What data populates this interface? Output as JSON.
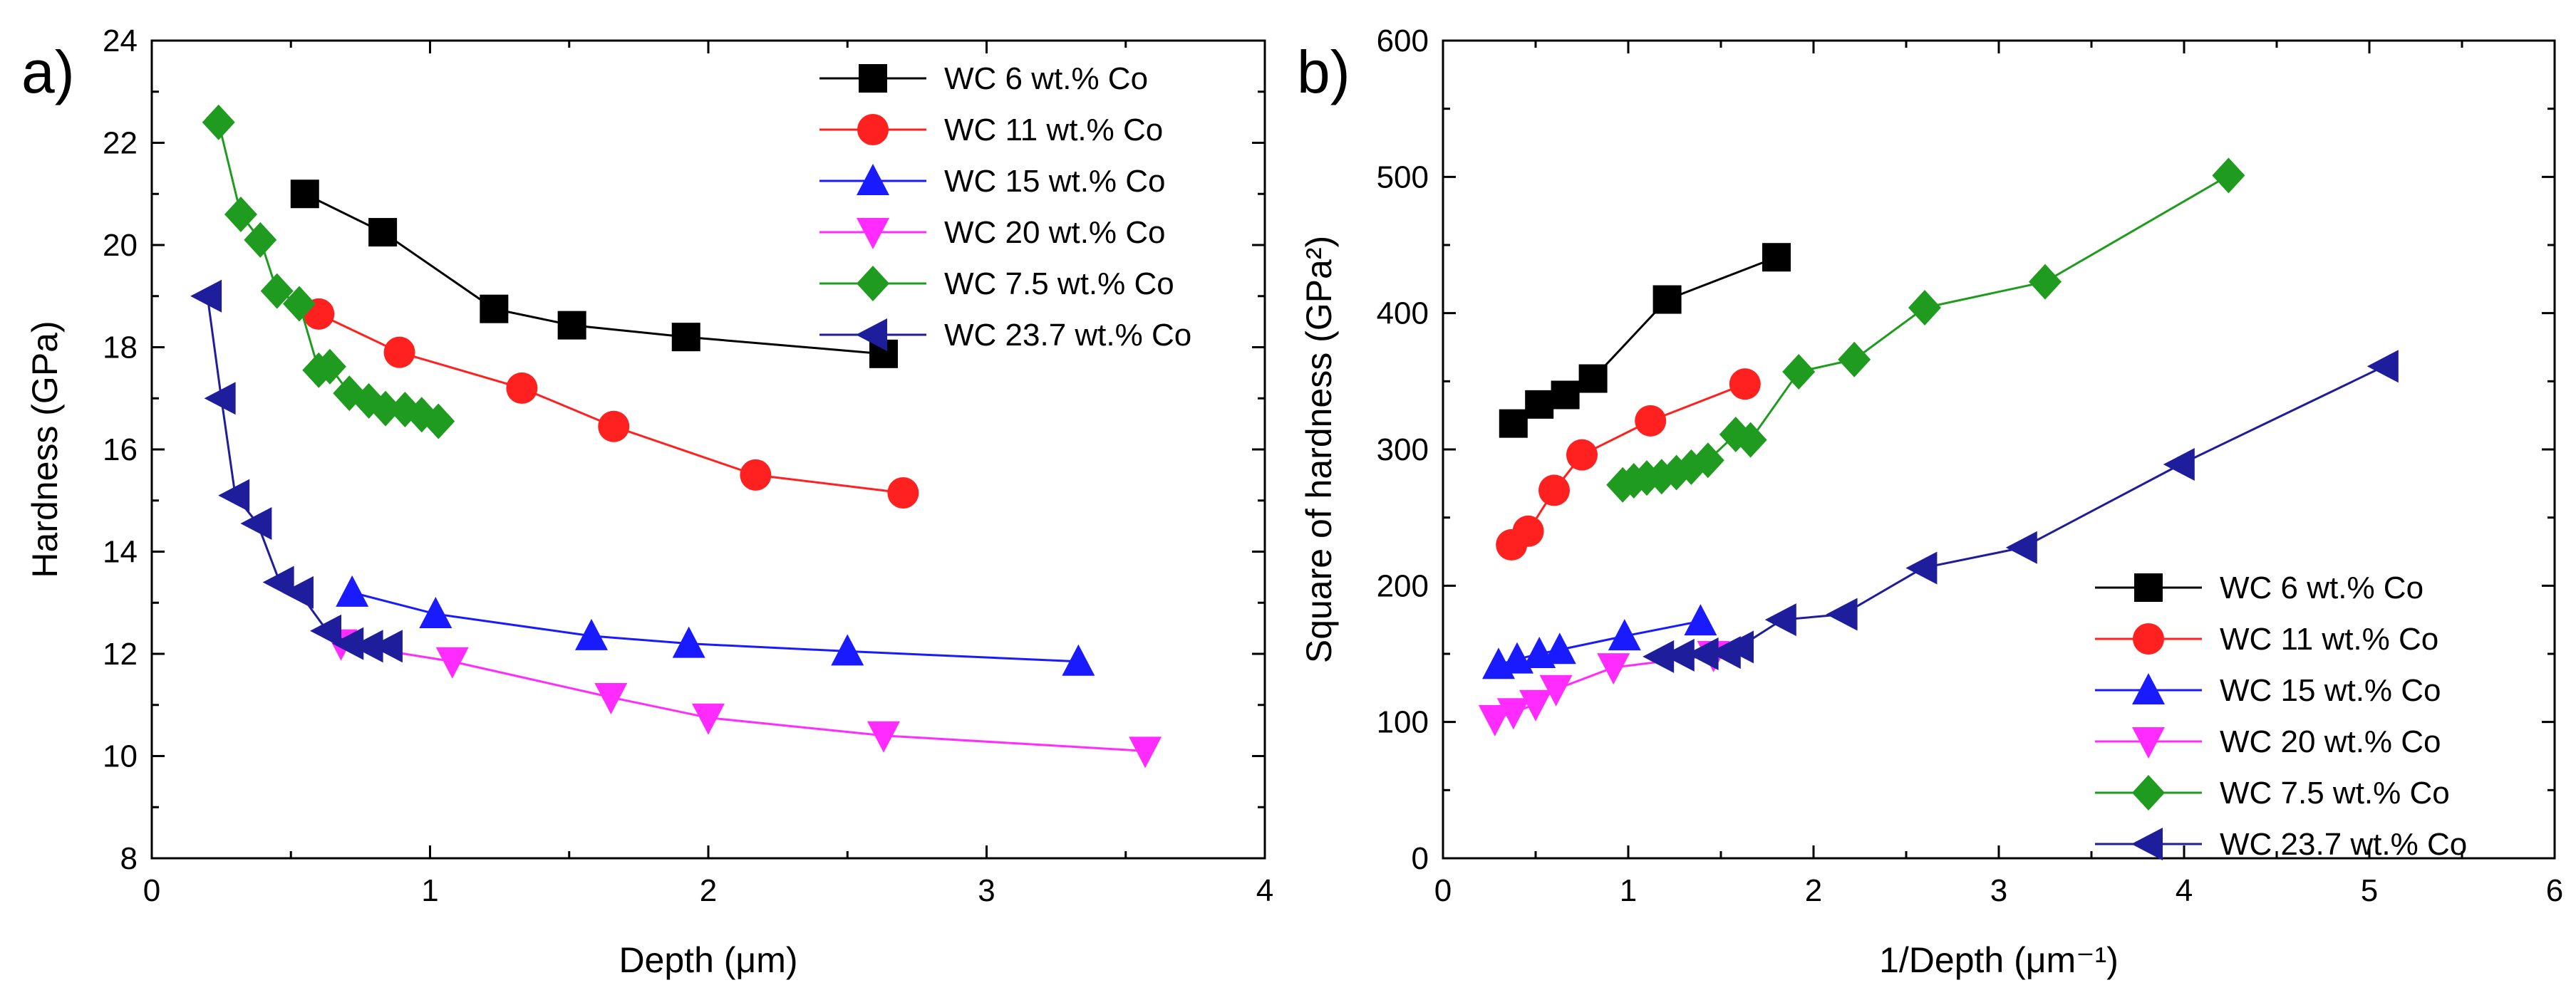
{
  "colors": {
    "black": "#000000",
    "red": "#ff2020",
    "blue": "#1a1aff",
    "magenta": "#ff2bff",
    "green": "#1f9c1f",
    "navy": "#1e1e9c"
  },
  "chart_data": [
    {
      "type": "line",
      "panel_label": "a)",
      "title": "",
      "xlabel": "Depth (μm)",
      "ylabel": "Hardness (GPa)",
      "xlim": [
        0,
        4
      ],
      "ylim": [
        8,
        24
      ],
      "xticks": [
        0,
        1,
        2,
        3,
        4
      ],
      "yticks": [
        8,
        10,
        12,
        14,
        16,
        18,
        20,
        22,
        24
      ],
      "xtick_labels": [
        "0",
        "1",
        "2",
        "3",
        "4"
      ],
      "ytick_labels": [
        "8",
        "10",
        "12",
        "14",
        "16",
        "18",
        "20",
        "22",
        "24"
      ],
      "legend_position": "top-right",
      "series": [
        {
          "name": "WC 6 wt.% Co",
          "marker": "square",
          "color": "#000000",
          "x": [
            0.55,
            0.83,
            1.23,
            1.51,
            1.92,
            2.63
          ],
          "y": [
            21.0,
            20.25,
            18.75,
            18.43,
            18.2,
            17.87
          ]
        },
        {
          "name": "WC 11 wt.% Co",
          "marker": "circle",
          "color": "#ff2020",
          "x": [
            0.6,
            0.89,
            1.33,
            1.66,
            2.17,
            2.7
          ],
          "y": [
            18.65,
            17.9,
            17.2,
            16.45,
            15.5,
            15.15
          ]
        },
        {
          "name": "WC 15 wt.% Co",
          "marker": "triangle-up",
          "color": "#1a1aff",
          "x": [
            0.72,
            1.02,
            1.58,
            1.93,
            2.5,
            3.33
          ],
          "y": [
            13.2,
            12.78,
            12.35,
            12.2,
            12.05,
            11.85
          ]
        },
        {
          "name": "WC 20 wt.% Co",
          "marker": "triangle-down",
          "color": "#ff2bff",
          "x": [
            0.68,
            1.08,
            1.65,
            2.0,
            2.63,
            3.57
          ],
          "y": [
            12.2,
            11.85,
            11.15,
            10.75,
            10.4,
            10.1
          ]
        },
        {
          "name": "WC 7.5 wt.% Co",
          "marker": "diamond",
          "color": "#1f9c1f",
          "x": [
            0.24,
            0.32,
            0.39,
            0.45,
            0.53,
            0.6,
            0.64,
            0.71,
            0.78,
            0.84,
            0.91,
            0.97,
            1.03
          ],
          "y": [
            22.4,
            20.6,
            20.1,
            19.1,
            18.85,
            17.55,
            17.62,
            17.1,
            16.95,
            16.8,
            16.78,
            16.68,
            16.55
          ]
        },
        {
          "name": "WC 23.7 wt.% Co",
          "marker": "triangle-left",
          "color": "#1e1e9c",
          "x": [
            0.2,
            0.25,
            0.3,
            0.38,
            0.46,
            0.53,
            0.63,
            0.71,
            0.78,
            0.85
          ],
          "y": [
            19.0,
            17.0,
            15.1,
            14.55,
            13.4,
            13.2,
            12.45,
            12.2,
            12.15,
            12.15
          ]
        }
      ]
    },
    {
      "type": "line",
      "panel_label": "b)",
      "title": "",
      "xlabel": "1/Depth (μm⁻¹)",
      "ylabel": "Square of hardness (GPa²)",
      "xlim": [
        0,
        6
      ],
      "ylim": [
        0,
        600
      ],
      "xticks": [
        0,
        1,
        2,
        3,
        4,
        5,
        6
      ],
      "yticks": [
        0,
        100,
        200,
        300,
        400,
        500,
        600
      ],
      "xtick_labels": [
        "0",
        "1",
        "2",
        "3",
        "4",
        "5",
        "6"
      ],
      "ytick_labels": [
        "0",
        "100",
        "200",
        "300",
        "400",
        "500",
        "600"
      ],
      "legend_position": "bottom-right",
      "series": [
        {
          "name": "WC 6 wt.% Co",
          "marker": "square",
          "color": "#000000",
          "x": [
            0.38,
            0.52,
            0.66,
            0.81,
            1.21,
            1.8
          ],
          "y": [
            319,
            333,
            340,
            352,
            410,
            441
          ]
        },
        {
          "name": "WC 11 wt.% Co",
          "marker": "circle",
          "color": "#ff2020",
          "x": [
            0.37,
            0.46,
            0.6,
            0.75,
            1.12,
            1.63
          ],
          "y": [
            230,
            240,
            270,
            296,
            321,
            348
          ]
        },
        {
          "name": "WC 15 wt.% Co",
          "marker": "triangle-up",
          "color": "#1a1aff",
          "x": [
            0.3,
            0.4,
            0.52,
            0.63,
            0.98,
            1.39
          ],
          "y": [
            142,
            146,
            150,
            153,
            163,
            174
          ]
        },
        {
          "name": "WC 20 wt.% Co",
          "marker": "triangle-down",
          "color": "#ff2bff",
          "x": [
            0.28,
            0.38,
            0.5,
            0.61,
            0.92,
            1.46
          ],
          "y": [
            102,
            107,
            113,
            124,
            140,
            149
          ]
        },
        {
          "name": "WC 7.5 wt.% Co",
          "marker": "diamond",
          "color": "#1f9c1f",
          "x": [
            0.97,
            1.03,
            1.1,
            1.18,
            1.26,
            1.34,
            1.43,
            1.58,
            1.66,
            1.92,
            2.22,
            2.6,
            3.25,
            4.24
          ],
          "y": [
            274,
            277,
            279,
            280,
            283,
            287,
            292,
            311,
            307,
            357,
            366,
            404,
            423,
            501
          ]
        },
        {
          "name": "WC 23.7 wt.% Co",
          "marker": "triangle-left",
          "color": "#1e1e9c",
          "x": [
            1.17,
            1.28,
            1.41,
            1.53,
            1.6,
            1.83,
            2.16,
            2.59,
            3.13,
            3.98,
            5.08
          ],
          "y": [
            148,
            149,
            150,
            151,
            155,
            175,
            179,
            213,
            228,
            289,
            361
          ]
        }
      ]
    }
  ]
}
